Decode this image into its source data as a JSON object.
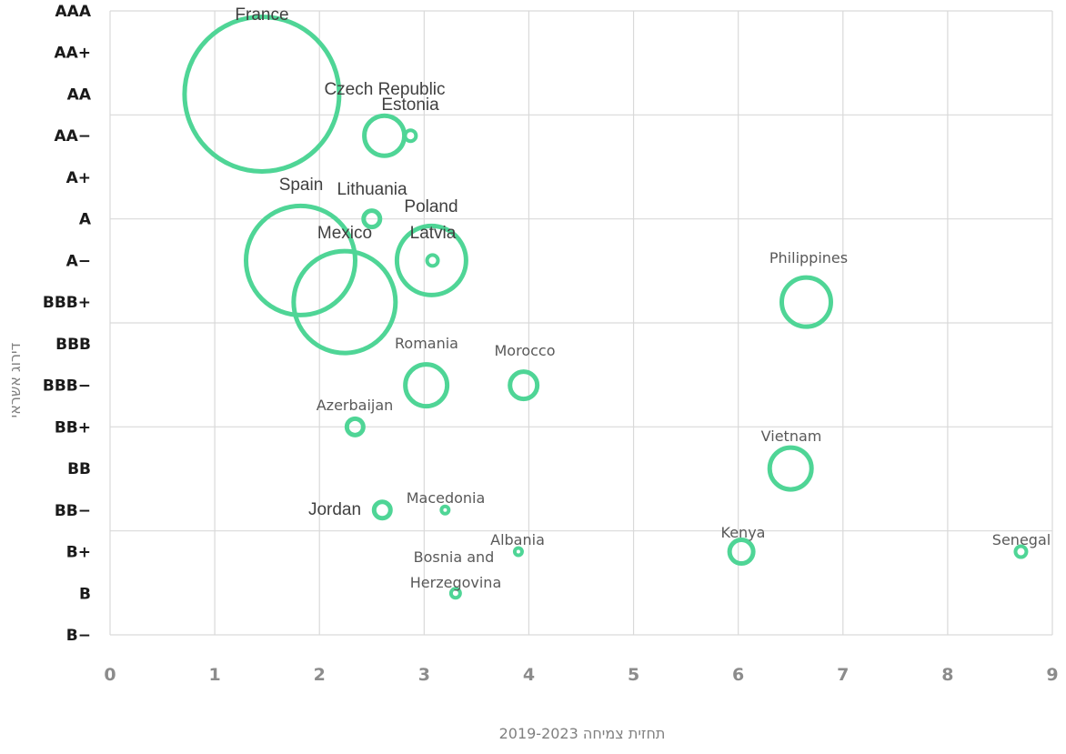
{
  "chart_data": {
    "type": "bubble",
    "xlabel": "תחזית צמיחה 2019-2023",
    "ylabel": "דירוג אשראי",
    "xlim": [
      0,
      9
    ],
    "x_ticks": [
      "0",
      "1",
      "2",
      "3",
      "4",
      "5",
      "6",
      "7",
      "8",
      "9"
    ],
    "y_categories": [
      "B-",
      "B",
      "B+",
      "BB-",
      "BB",
      "BB+",
      "BBB-",
      "BBB",
      "BBB+",
      "A-",
      "A",
      "A+",
      "AA-",
      "AA",
      "AA+",
      "AAA"
    ],
    "y_tick_labels": [
      "B−",
      "B",
      "B+",
      "BB−",
      "BB",
      "BB+",
      "BBB−",
      "BBB",
      "BBB+",
      "A−",
      "A",
      "A+",
      "AA−",
      "AA",
      "AA+",
      "AAA"
    ],
    "grid": true,
    "bubble_color": "#4fd596",
    "points": [
      {
        "name": "France",
        "x": 1.45,
        "y": "AA",
        "size": 85
      },
      {
        "name": "Czech Republic",
        "x": 2.62,
        "y": "AA-",
        "size": 22
      },
      {
        "name": "Estonia",
        "x": 2.87,
        "y": "AA-",
        "size": 6
      },
      {
        "name": "Spain",
        "x": 1.82,
        "y": "A-",
        "size": 60
      },
      {
        "name": "Lithuania",
        "x": 2.5,
        "y": "A",
        "size": 9
      },
      {
        "name": "Poland",
        "x": 3.07,
        "y": "A-",
        "size": 38
      },
      {
        "name": "Latvia",
        "x": 3.08,
        "y": "A-",
        "size": 6
      },
      {
        "name": "Mexico",
        "x": 2.24,
        "y": "BBB+",
        "size": 56
      },
      {
        "name": "Philippines",
        "x": 6.65,
        "y": "BBB+",
        "size": 27
      },
      {
        "name": "Romania",
        "x": 3.02,
        "y": "BBB-",
        "size": 23
      },
      {
        "name": "Morocco",
        "x": 3.95,
        "y": "BBB-",
        "size": 15
      },
      {
        "name": "Azerbaijan",
        "x": 2.34,
        "y": "BB+",
        "size": 9
      },
      {
        "name": "Vietnam",
        "x": 6.5,
        "y": "BB",
        "size": 23
      },
      {
        "name": "Jordan",
        "x": 2.6,
        "y": "BB-",
        "size": 9
      },
      {
        "name": "Macedonia",
        "x": 3.2,
        "y": "BB-",
        "size": 4
      },
      {
        "name": "Albania",
        "x": 3.9,
        "y": "B+",
        "size": 4
      },
      {
        "name": "Kenya",
        "x": 6.03,
        "y": "B+",
        "size": 13
      },
      {
        "name": "Senegal",
        "x": 8.7,
        "y": "B+",
        "size": 6
      },
      {
        "name": "Bosnia and Herzegovina",
        "x": 3.3,
        "y": "B",
        "size": 5
      }
    ],
    "labels": [
      {
        "text": "France",
        "style": "alt"
      },
      {
        "text": "Czech Republic",
        "style": "alt"
      },
      {
        "text": "Estonia",
        "style": "alt"
      },
      {
        "text": "Spain",
        "style": "alt"
      },
      {
        "text": "Lithuania",
        "style": "alt"
      },
      {
        "text": "Poland",
        "style": "alt"
      },
      {
        "text": "Mexico",
        "style": "alt"
      },
      {
        "text": "Latvia",
        "style": "alt"
      },
      {
        "text": "Philippines",
        "style": "normal"
      },
      {
        "text": "Romania",
        "style": "normal"
      },
      {
        "text": "Morocco",
        "style": "normal"
      },
      {
        "text": "Azerbaijan",
        "style": "normal"
      },
      {
        "text": "Vietnam",
        "style": "normal"
      },
      {
        "text": "Macedonia",
        "style": "normal"
      },
      {
        "text": "Jordan",
        "style": "alt"
      },
      {
        "text": "Albania",
        "style": "normal"
      },
      {
        "text": "Kenya",
        "style": "normal"
      },
      {
        "text": "Senegal",
        "style": "normal"
      },
      {
        "text": "Bosnia and",
        "style": "normal"
      },
      {
        "text": "Herzegovina",
        "style": "normal"
      }
    ]
  }
}
